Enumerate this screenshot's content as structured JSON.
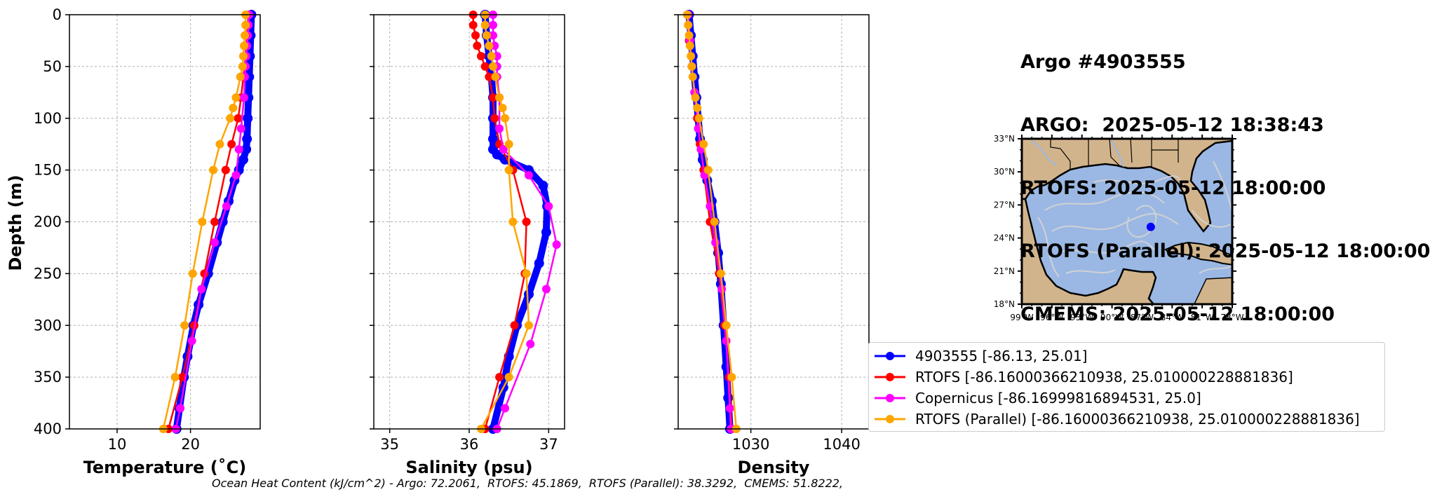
{
  "title": {
    "lines": [
      "Argo #4903555",
      "ARGO:  2025-05-12 18:38:43",
      "RTOFS: 2025-05-12 18:00:00",
      "RTOFS (Parallel): 2025-05-12 18:00:00",
      "CMEMS: 2025-05-12 18:00:00"
    ]
  },
  "footer": "Ocean Heat Content (kJ/cm^2) - Argo: 72.2061,  RTOFS: 45.1869,  RTOFS (Parallel): 38.3292,  CMEMS: 51.8222,",
  "colors": {
    "argo": "#0000ff",
    "rtofs": "#ff0000",
    "copernicus": "#ff00ff",
    "rtofs_parallel": "#ffa500",
    "land": "#d2b48c",
    "ocean": "#9bb8e4",
    "currents": "#d3d3d3"
  },
  "legend": [
    {
      "label": "4903555 [-86.13, 25.01]",
      "color": "#0000ff"
    },
    {
      "label": "RTOFS [-86.16000366210938, 25.010000228881836]",
      "color": "#ff0000"
    },
    {
      "label": "Copernicus [-86.16999816894531, 25.0]",
      "color": "#ff00ff"
    },
    {
      "label": "RTOFS (Parallel) [-86.16000366210938, 25.010000228881836]",
      "color": "#ffa500"
    }
  ],
  "map": {
    "lat_ticks": [
      "33°N",
      "30°N",
      "27°N",
      "24°N",
      "21°N",
      "18°N"
    ],
    "lon_ticks": [
      "99°W",
      "96°W",
      "93°W",
      "90°W",
      "87°W",
      "84°W",
      "81°W",
      "78°W"
    ],
    "lon_range": [
      -99,
      -78
    ],
    "lat_range": [
      18,
      33
    ],
    "float_location": {
      "lon": -86.13,
      "lat": 25.01
    }
  },
  "chart_data": [
    {
      "type": "line",
      "xlabel": "Temperature (˚C)",
      "ylabel": "Depth (m)",
      "xlim": [
        3.5,
        29.5
      ],
      "ylim": [
        400,
        0
      ],
      "xticks": [
        10,
        20
      ],
      "yticks": [
        0,
        50,
        100,
        150,
        200,
        250,
        300,
        350,
        400
      ],
      "grid": true,
      "series": [
        {
          "name": "4903555 [-86.13, 25.01]",
          "color": "#0000ff",
          "depth": [
            0,
            20,
            40,
            60,
            80,
            100,
            120,
            130,
            140,
            150,
            160,
            180,
            200,
            220,
            250,
            280,
            300,
            330,
            350,
            380,
            400
          ],
          "values": [
            28.3,
            28.2,
            28.1,
            28.0,
            27.9,
            27.8,
            27.7,
            27.6,
            27.2,
            26.6,
            26.0,
            25.2,
            24.4,
            23.6,
            22.4,
            21.1,
            20.4,
            19.6,
            19.1,
            18.5,
            18.1
          ]
        },
        {
          "name": "RTOFS [-86.16000366210938, 25.010000228881836]",
          "color": "#ff0000",
          "depth": [
            0,
            10,
            20,
            30,
            40,
            50,
            60,
            80,
            100,
            125,
            150,
            200,
            250,
            300,
            350,
            400
          ],
          "values": [
            27.9,
            27.8,
            27.7,
            27.6,
            27.5,
            27.4,
            27.2,
            26.9,
            26.5,
            25.6,
            24.8,
            23.3,
            21.9,
            20.5,
            18.9,
            17.0
          ]
        },
        {
          "name": "Copernicus [-86.16999816894531, 25.0]",
          "color": "#ff00ff",
          "depth": [
            0,
            10,
            20,
            30,
            40,
            50,
            60,
            80,
            110,
            130,
            155,
            185,
            220,
            265,
            315,
            380,
            400
          ],
          "values": [
            28.0,
            27.9,
            27.8,
            27.7,
            27.6,
            27.5,
            27.4,
            27.3,
            26.9,
            26.6,
            26.2,
            24.9,
            23.3,
            21.5,
            20.2,
            18.6,
            18.0
          ]
        },
        {
          "name": "RTOFS (Parallel) [-86.16000366210938, 25.010000228881836]",
          "color": "#ffa500",
          "depth": [
            0,
            10,
            20,
            30,
            40,
            50,
            60,
            80,
            90,
            100,
            125,
            150,
            200,
            250,
            300,
            350,
            400
          ],
          "values": [
            27.5,
            27.5,
            27.4,
            27.3,
            27.2,
            27.1,
            26.8,
            26.2,
            25.8,
            25.4,
            24.0,
            23.1,
            21.6,
            20.3,
            19.2,
            17.9,
            16.3
          ]
        }
      ]
    },
    {
      "type": "line",
      "xlabel": "Salinity (psu)",
      "ylabel": "",
      "xlim": [
        34.8,
        37.2
      ],
      "ylim": [
        400,
        0
      ],
      "xticks": [
        35,
        36,
        37
      ],
      "yticks": [
        0,
        50,
        100,
        150,
        200,
        250,
        300,
        350,
        400
      ],
      "grid": true,
      "series": [
        {
          "name": "4903555 [-86.13, 25.01]",
          "color": "#0000ff",
          "depth": [
            0,
            20,
            40,
            60,
            80,
            100,
            120,
            130,
            135,
            140,
            150,
            165,
            185,
            210,
            240,
            270,
            300,
            330,
            360,
            400
          ],
          "values": [
            36.2,
            36.22,
            36.25,
            36.28,
            36.3,
            36.3,
            36.3,
            36.3,
            36.35,
            36.45,
            36.75,
            36.93,
            36.98,
            36.97,
            36.88,
            36.75,
            36.6,
            36.5,
            36.43,
            36.3
          ]
        },
        {
          "name": "RTOFS [-86.16000366210938, 25.010000228881836]",
          "color": "#ff0000",
          "depth": [
            0,
            10,
            20,
            30,
            40,
            50,
            60,
            80,
            100,
            125,
            150,
            200,
            250,
            300,
            350,
            400
          ],
          "values": [
            36.05,
            36.05,
            36.08,
            36.1,
            36.15,
            36.2,
            36.25,
            36.3,
            36.32,
            36.38,
            36.55,
            36.72,
            36.7,
            36.57,
            36.38,
            36.2
          ]
        },
        {
          "name": "Copernicus [-86.16999816894531, 25.0]",
          "color": "#ff00ff",
          "depth": [
            0,
            10,
            20,
            30,
            40,
            50,
            60,
            80,
            110,
            130,
            155,
            185,
            222,
            265,
            318,
            380,
            400
          ],
          "values": [
            36.3,
            36.3,
            36.3,
            36.32,
            36.35,
            36.35,
            36.35,
            36.38,
            36.38,
            36.43,
            36.75,
            37.0,
            37.1,
            36.97,
            36.77,
            36.45,
            36.35
          ]
        },
        {
          "name": "RTOFS (Parallel) [-86.16000366210938, 25.010000228881836]",
          "color": "#ffa500",
          "depth": [
            0,
            10,
            20,
            30,
            40,
            50,
            60,
            80,
            90,
            100,
            125,
            150,
            200,
            250,
            300,
            350,
            400
          ],
          "values": [
            36.2,
            36.2,
            36.22,
            36.25,
            36.28,
            36.3,
            36.33,
            36.38,
            36.42,
            36.45,
            36.5,
            36.5,
            36.55,
            36.72,
            36.75,
            36.5,
            36.15
          ]
        }
      ]
    },
    {
      "type": "line",
      "xlabel": "Density",
      "ylabel": "",
      "xlim": [
        1022.0,
        1043.0
      ],
      "ylim": [
        400,
        0
      ],
      "xticks": [
        1030,
        1040
      ],
      "yticks": [
        0,
        50,
        100,
        150,
        200,
        250,
        300,
        350,
        400
      ],
      "grid": true,
      "series": [
        {
          "name": "4903555 [-86.13, 25.01]",
          "color": "#0000ff",
          "depth": [
            0,
            20,
            40,
            60,
            80,
            100,
            120,
            140,
            160,
            180,
            200,
            230,
            260,
            300,
            340,
            370,
            400
          ],
          "values": [
            1023.2,
            1023.4,
            1023.6,
            1023.8,
            1024.0,
            1024.2,
            1024.4,
            1024.7,
            1025.2,
            1025.7,
            1026.0,
            1026.4,
            1026.7,
            1027.0,
            1027.3,
            1027.5,
            1027.7
          ]
        },
        {
          "name": "RTOFS [-86.16000366210938, 25.010000228881836]",
          "color": "#ff0000",
          "depth": [
            0,
            25,
            50,
            75,
            100,
            125,
            150,
            200,
            250,
            300,
            350,
            400
          ],
          "values": [
            1023.0,
            1023.2,
            1023.5,
            1023.8,
            1024.1,
            1024.4,
            1024.8,
            1025.5,
            1026.5,
            1027.1,
            1027.6,
            1027.9
          ]
        },
        {
          "name": "Copernicus [-86.16999816894531, 25.0]",
          "color": "#ff00ff",
          "depth": [
            0,
            25,
            50,
            75,
            110,
            130,
            155,
            185,
            220,
            265,
            315,
            380,
            400
          ],
          "values": [
            1023.1,
            1023.3,
            1023.5,
            1023.8,
            1024.2,
            1024.5,
            1024.9,
            1025.5,
            1026.1,
            1026.8,
            1027.3,
            1027.7,
            1027.8
          ]
        },
        {
          "name": "RTOFS (Parallel) [-86.16000366210938, 25.010000228881836]",
          "color": "#ffa500",
          "depth": [
            0,
            10,
            20,
            30,
            40,
            50,
            60,
            80,
            90,
            100,
            125,
            150,
            200,
            250,
            300,
            350,
            400
          ],
          "values": [
            1023.0,
            1023.1,
            1023.2,
            1023.3,
            1023.4,
            1023.5,
            1023.6,
            1023.9,
            1024.1,
            1024.3,
            1024.8,
            1025.3,
            1026.0,
            1026.7,
            1027.3,
            1027.9,
            1028.4
          ]
        }
      ]
    }
  ]
}
